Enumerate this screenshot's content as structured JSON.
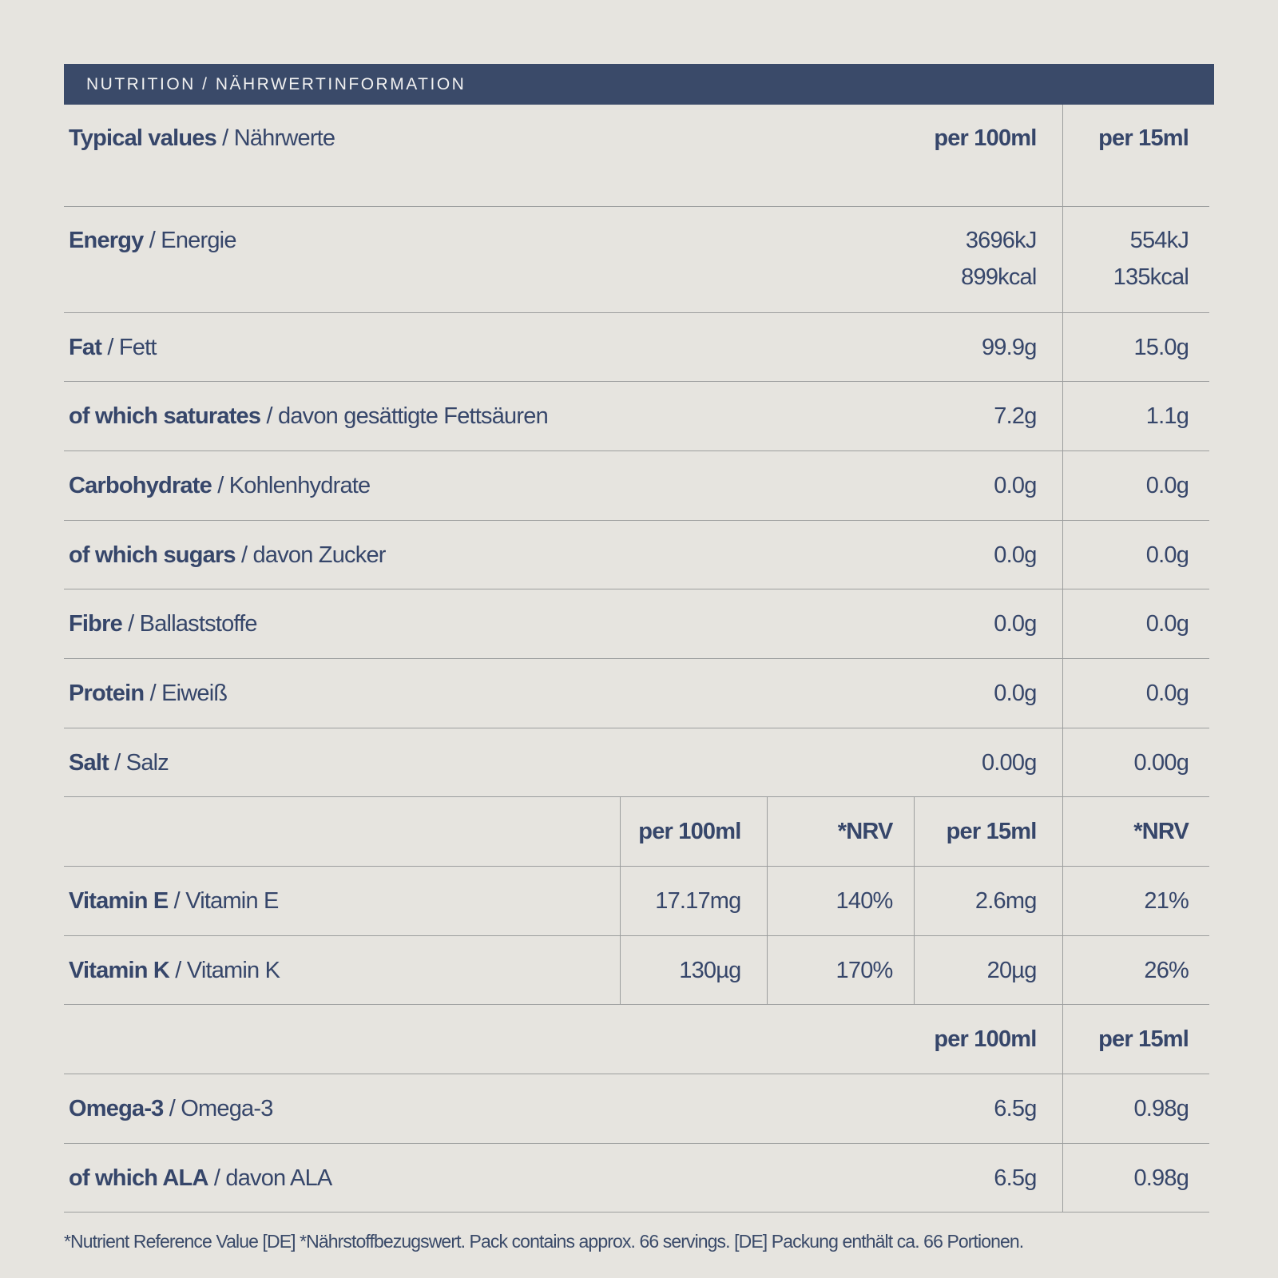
{
  "header": {
    "title": "NUTRITION / NÄHRWERTINFORMATION"
  },
  "main_table": {
    "label": {
      "en": "Typical values",
      "de": " / Nährwerte"
    },
    "col_100": "per 100ml",
    "col_15": "per 15ml",
    "rows": [
      {
        "en": "Energy",
        "de": " / Energie",
        "v100": [
          "3696kJ",
          "899kcal"
        ],
        "v15": [
          "554kJ",
          "135kcal"
        ]
      },
      {
        "en": "Fat",
        "de": " / Fett",
        "v100": "99.9g",
        "v15": "15.0g"
      },
      {
        "en": "of which saturates",
        "de": " / davon gesättigte Fettsäuren",
        "v100": "7.2g",
        "v15": "1.1g"
      },
      {
        "en": "Carbohydrate",
        "de": " / Kohlenhydrate",
        "v100": "0.0g",
        "v15": "0.0g"
      },
      {
        "en": "of which sugars",
        "de": " / davon Zucker",
        "v100": "0.0g",
        "v15": "0.0g"
      },
      {
        "en": "Fibre",
        "de": " / Ballaststoffe",
        "v100": "0.0g",
        "v15": "0.0g"
      },
      {
        "en": "Protein",
        "de": " / Eiweiß",
        "v100": "0.0g",
        "v15": "0.0g"
      },
      {
        "en": "Salt",
        "de": " / Salz",
        "v100": "0.00g",
        "v15": "0.00g"
      }
    ]
  },
  "vitamin_table": {
    "cols": [
      "per 100ml",
      "*NRV",
      "per 15ml",
      "*NRV"
    ],
    "rows": [
      {
        "en": "Vitamin E",
        "de": " / Vitamin E",
        "values": [
          "17.17mg",
          "140%",
          "2.6mg",
          "21%"
        ]
      },
      {
        "en": "Vitamin K",
        "de": " / Vitamin K",
        "values": [
          "130µg",
          "170%",
          "20µg",
          "26%"
        ]
      }
    ]
  },
  "omega_table": {
    "col_100": "per 100ml",
    "col_15": "per 15ml",
    "rows": [
      {
        "en": "Omega-3",
        "de": " / Omega-3",
        "v100": "6.5g",
        "v15": "0.98g"
      },
      {
        "en": "of which ALA",
        "de": " / davon ALA",
        "v100": "6.5g",
        "v15": "0.98g"
      }
    ]
  },
  "footnote": "*Nutrient Reference Value [DE] *Nährstoffbezugswert. Pack contains approx. 66 servings. [DE] Packung enthält ca. 66 Portionen."
}
